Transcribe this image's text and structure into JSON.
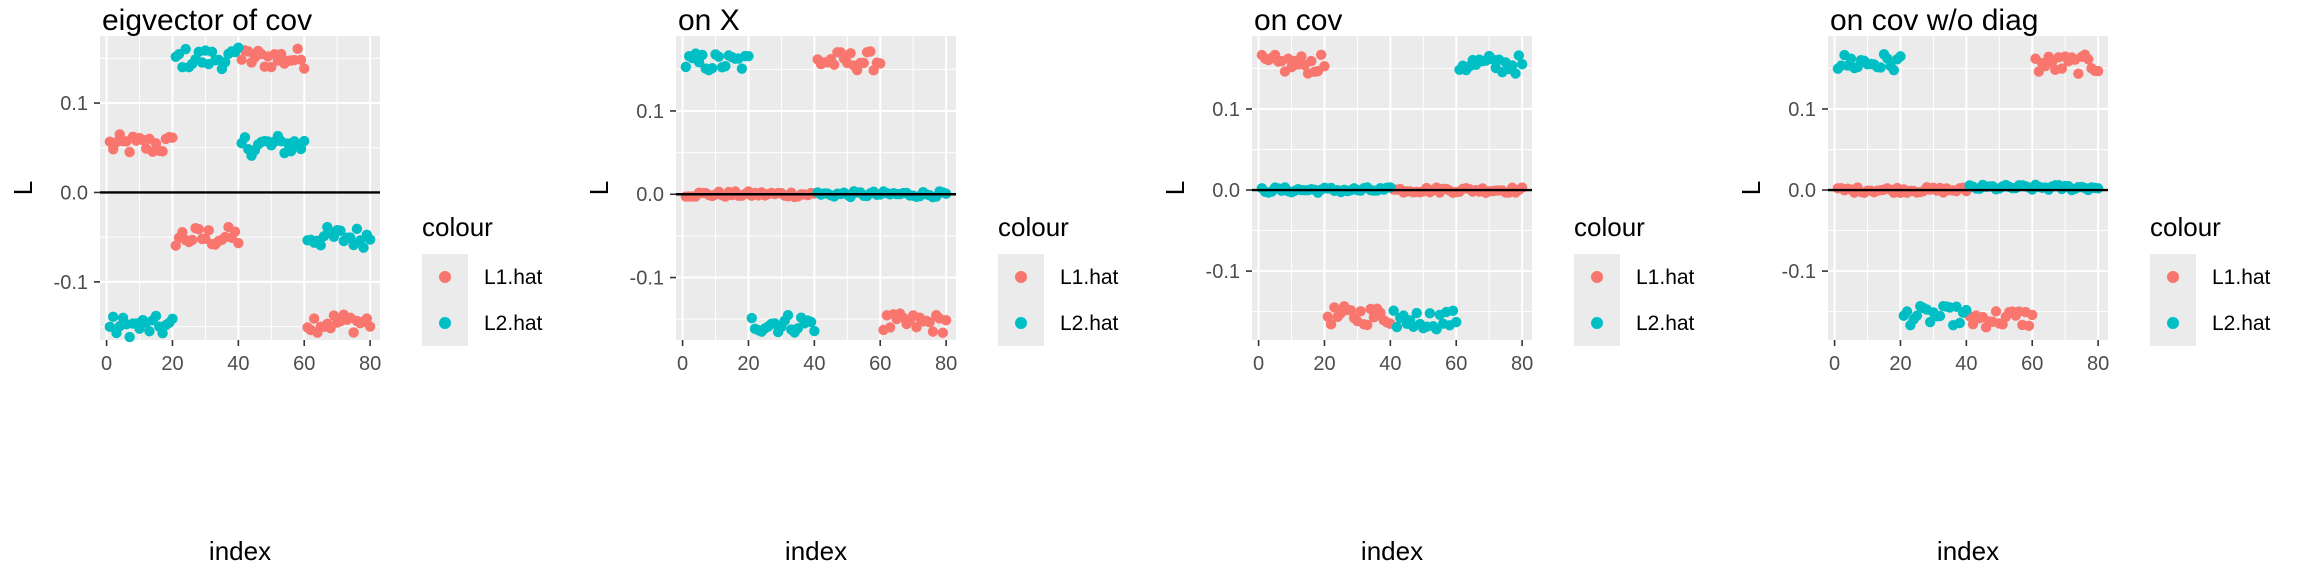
{
  "colors": {
    "L1.hat": "#F8766D",
    "L2.hat": "#00BFC4",
    "panel_bg": "#EBEBEB",
    "grid": "#FFFFFF",
    "hline": "#000000"
  },
  "chart_data": [
    {
      "type": "scatter",
      "title": "eigvector of cov",
      "xlabel": "index",
      "ylabel": "L",
      "xlim": [
        -2,
        83
      ],
      "ylim": [
        -0.165,
        0.175
      ],
      "xticks": [
        0,
        20,
        40,
        60,
        80
      ],
      "xtick_labels": [
        "0",
        "20",
        "40",
        "60",
        "80"
      ],
      "yticks": [
        -0.1,
        0.0,
        0.1
      ],
      "ytick_labels": [
        "-0.1",
        "0.0",
        "0.1"
      ],
      "hline": 0,
      "legend": {
        "title": "colour",
        "position": "right",
        "entries": [
          "L1.hat",
          "L2.hat"
        ]
      },
      "series": [
        {
          "name": "L1.hat",
          "color": "#F8766D",
          "segments": [
            {
              "x_range": [
                1,
                20
              ],
              "y": 0.053
            },
            {
              "x_range": [
                21,
                40
              ],
              "y": -0.05
            },
            {
              "x_range": [
                41,
                60
              ],
              "y": 0.15
            },
            {
              "x_range": [
                61,
                80
              ],
              "y": -0.145
            }
          ]
        },
        {
          "name": "L2.hat",
          "color": "#00BFC4",
          "segments": [
            {
              "x_range": [
                1,
                20
              ],
              "y": -0.15
            },
            {
              "x_range": [
                21,
                40
              ],
              "y": 0.15
            },
            {
              "x_range": [
                41,
                60
              ],
              "y": 0.053
            },
            {
              "x_range": [
                61,
                80
              ],
              "y": -0.05
            }
          ]
        }
      ]
    },
    {
      "type": "scatter",
      "title": "on X",
      "xlabel": "index",
      "ylabel": "L",
      "xlim": [
        -2,
        83
      ],
      "ylim": [
        -0.175,
        0.19
      ],
      "xticks": [
        0,
        20,
        40,
        60,
        80
      ],
      "xtick_labels": [
        "0",
        "20",
        "40",
        "60",
        "80"
      ],
      "yticks": [
        -0.1,
        0.0,
        0.1
      ],
      "ytick_labels": [
        "-0.1",
        "0.0",
        "0.1"
      ],
      "hline": 0,
      "legend": {
        "title": "colour",
        "position": "right",
        "entries": [
          "L1.hat",
          "L2.hat"
        ]
      },
      "series": [
        {
          "name": "L1.hat",
          "color": "#F8766D",
          "segments": [
            {
              "x_range": [
                1,
                40
              ],
              "y": 0.0
            },
            {
              "x_range": [
                41,
                60
              ],
              "y": 0.16
            },
            {
              "x_range": [
                61,
                80
              ],
              "y": -0.155
            }
          ]
        },
        {
          "name": "L2.hat",
          "color": "#00BFC4",
          "segments": [
            {
              "x_range": [
                1,
                20
              ],
              "y": 0.158
            },
            {
              "x_range": [
                21,
                40
              ],
              "y": -0.155
            },
            {
              "x_range": [
                41,
                80
              ],
              "y": 0.0
            }
          ]
        }
      ]
    },
    {
      "type": "scatter",
      "title": "on cov",
      "xlabel": "index",
      "ylabel": "L",
      "xlim": [
        -2,
        83
      ],
      "ylim": [
        -0.185,
        0.19
      ],
      "xticks": [
        0,
        20,
        40,
        60,
        80
      ],
      "xtick_labels": [
        "0",
        "20",
        "40",
        "60",
        "80"
      ],
      "yticks": [
        -0.1,
        0.0,
        0.1
      ],
      "ytick_labels": [
        "-0.1",
        "0.0",
        "0.1"
      ],
      "hline": 0,
      "legend": {
        "title": "colour",
        "position": "right",
        "entries": [
          "L1.hat",
          "L2.hat"
        ]
      },
      "series": [
        {
          "name": "L1.hat",
          "color": "#F8766D",
          "segments": [
            {
              "x_range": [
                1,
                20
              ],
              "y": 0.155
            },
            {
              "x_range": [
                21,
                40
              ],
              "y": -0.155
            },
            {
              "x_range": [
                41,
                80
              ],
              "y": 0.0
            }
          ]
        },
        {
          "name": "L2.hat",
          "color": "#00BFC4",
          "segments": [
            {
              "x_range": [
                1,
                40
              ],
              "y": 0.0
            },
            {
              "x_range": [
                41,
                60
              ],
              "y": -0.16
            },
            {
              "x_range": [
                61,
                80
              ],
              "y": 0.155
            }
          ]
        }
      ]
    },
    {
      "type": "scatter",
      "title": "on cov w/o diag",
      "xlabel": "index",
      "ylabel": "L",
      "xlim": [
        -2,
        83
      ],
      "ylim": [
        -0.185,
        0.19
      ],
      "xticks": [
        0,
        20,
        40,
        60,
        80
      ],
      "xtick_labels": [
        "0",
        "20",
        "40",
        "60",
        "80"
      ],
      "yticks": [
        -0.1,
        0.0,
        0.1
      ],
      "ytick_labels": [
        "-0.1",
        "0.0",
        "0.1"
      ],
      "hline": 0,
      "legend": {
        "title": "colour",
        "position": "right",
        "entries": [
          "L1.hat",
          "L2.hat"
        ]
      },
      "series": [
        {
          "name": "L1.hat",
          "color": "#F8766D",
          "segments": [
            {
              "x_range": [
                1,
                40
              ],
              "y": 0.0
            },
            {
              "x_range": [
                41,
                60
              ],
              "y": -0.158
            },
            {
              "x_range": [
                61,
                80
              ],
              "y": 0.155
            }
          ]
        },
        {
          "name": "L2.hat",
          "color": "#00BFC4",
          "segments": [
            {
              "x_range": [
                1,
                20
              ],
              "y": 0.157
            },
            {
              "x_range": [
                21,
                40
              ],
              "y": -0.155
            },
            {
              "x_range": [
                41,
                80
              ],
              "y": 0.003
            }
          ]
        }
      ]
    }
  ]
}
